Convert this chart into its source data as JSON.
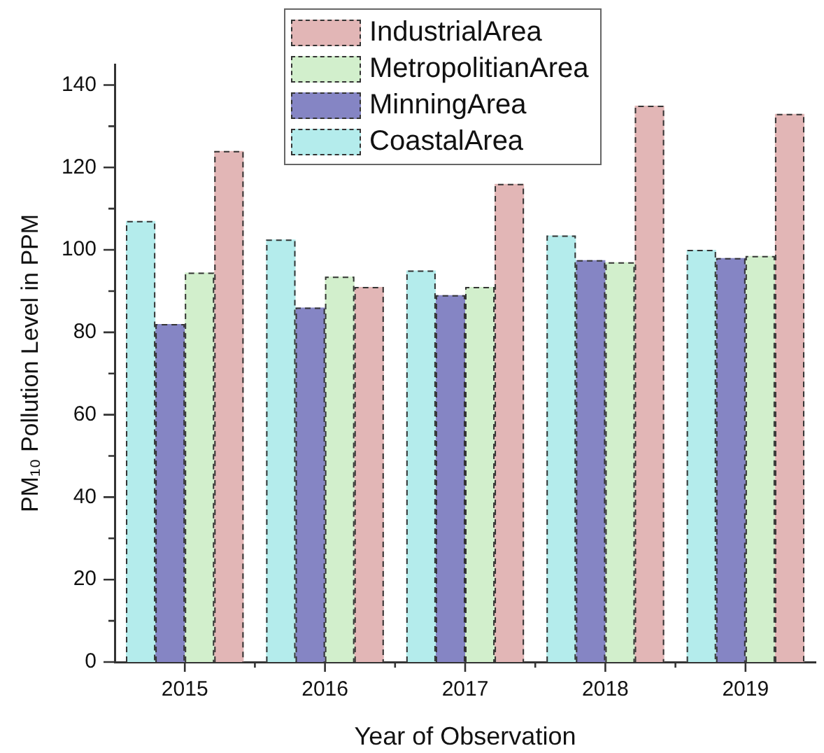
{
  "chart_data": {
    "type": "bar",
    "xlabel": "Year of Observation",
    "ylabel": "PM₁₀ Pollution Level in PPM",
    "categories": [
      "2015",
      "2016",
      "2017",
      "2018",
      "2019"
    ],
    "series": [
      {
        "name": "CoastalArea",
        "color": "#b4ecec",
        "values": [
          107,
          102.5,
          95,
          103.5,
          100
        ]
      },
      {
        "name": "MinningArea",
        "color": "#8585c4",
        "values": [
          82,
          86,
          89,
          97.5,
          98
        ]
      },
      {
        "name": "MetropolitianArea",
        "color": "#d2efcc",
        "values": [
          94.5,
          93.5,
          91,
          97,
          98.5
        ]
      },
      {
        "name": "IndustrialArea",
        "color": "#e2b6b6",
        "values": [
          124,
          91,
          116,
          135,
          133
        ]
      }
    ],
    "ylim": [
      0,
      145
    ],
    "yticks": [
      0,
      {
        "value": 10,
        "label": null
      },
      20,
      {
        "value": 30,
        "label": null
      },
      40,
      {
        "value": 50,
        "label": null
      },
      60,
      {
        "value": 70,
        "label": null
      },
      80,
      {
        "value": 90,
        "label": null
      },
      100,
      {
        "value": 110,
        "label": null
      },
      120,
      {
        "value": 130,
        "label": null
      },
      140
    ],
    "grid": false,
    "legend": "top"
  }
}
